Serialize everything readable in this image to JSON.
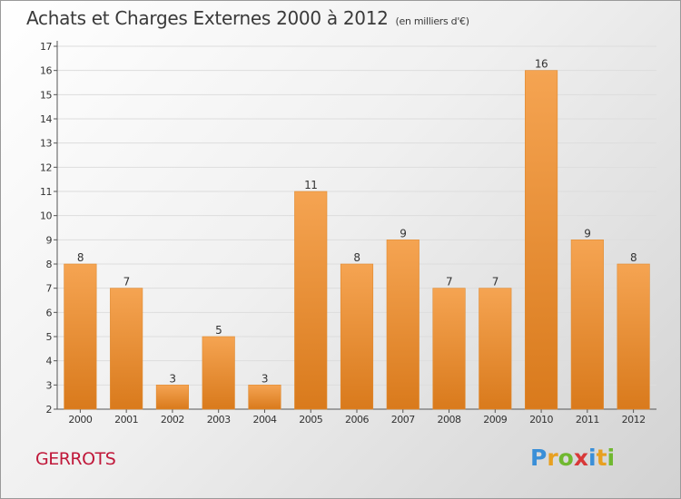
{
  "header": {
    "title": "Achats et Charges Externes 2000 à 2012",
    "unit": "(en milliers d'€)"
  },
  "footer": {
    "commune": "GERROTS",
    "logo": {
      "letters": [
        "P",
        "r",
        "o",
        "x",
        "i",
        "t",
        "i"
      ],
      "colors": [
        "#3a8fd8",
        "#e8a020",
        "#70b830",
        "#d83838",
        "#3a8fd8",
        "#e8a020",
        "#70b830"
      ]
    }
  },
  "chart_data": {
    "type": "bar",
    "title": "Achats et Charges Externes 2000 à 2012",
    "subtitle": "(en milliers d'€)",
    "xlabel": "",
    "ylabel": "",
    "categories": [
      "2000",
      "2001",
      "2002",
      "2003",
      "2004",
      "2005",
      "2006",
      "2007",
      "2008",
      "2009",
      "2010",
      "2011",
      "2012"
    ],
    "values": [
      8,
      7,
      3,
      5,
      3,
      11,
      8,
      9,
      7,
      7,
      16,
      9,
      8
    ],
    "ylim": [
      2,
      17
    ],
    "yticks": [
      2,
      3,
      4,
      5,
      6,
      7,
      8,
      9,
      10,
      11,
      12,
      13,
      14,
      15,
      16,
      17
    ],
    "grid": true,
    "data_labels": true,
    "bar_color": "#f29a3e",
    "bar_color_dark": "#d97a1c"
  }
}
